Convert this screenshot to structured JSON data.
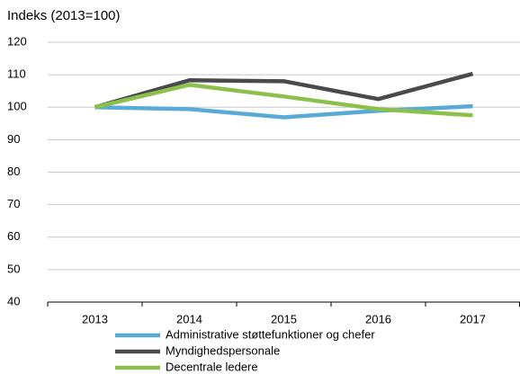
{
  "chart_data": {
    "type": "line",
    "title": "Indeks (2013=100)",
    "categories": [
      "2013",
      "2014",
      "2015",
      "2016",
      "2017"
    ],
    "series": [
      {
        "name": "Administrative støttefunktioner og chefer",
        "color": "#5aaad8",
        "values": [
          100,
          99.4,
          96.9,
          98.9,
          100.3
        ]
      },
      {
        "name": "Myndighedspersonale",
        "color": "#4a4a4d",
        "values": [
          100,
          108.3,
          108,
          102.5,
          110.3
        ]
      },
      {
        "name": "Decentrale ledere",
        "color": "#8dc04a",
        "values": [
          100,
          106.9,
          103.3,
          99.4,
          97.5
        ]
      }
    ],
    "ylim": [
      40,
      120
    ],
    "yticks": [
      40,
      50,
      60,
      70,
      80,
      90,
      100,
      110,
      120
    ],
    "grid": true,
    "legend": "bottom"
  }
}
